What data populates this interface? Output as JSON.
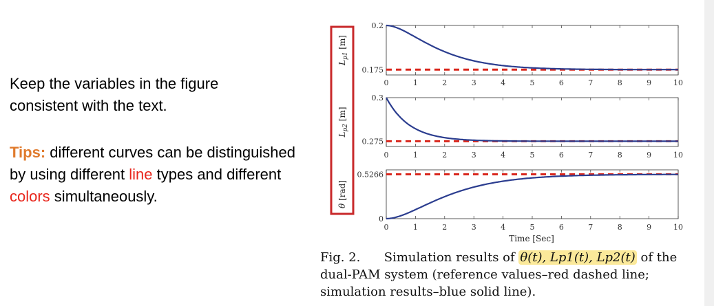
{
  "colors": {
    "tips": "#e07b2e",
    "accent_red": "#e8261c",
    "curve_blue": "#2b3d8f",
    "dash_red": "#d9261c",
    "highlight": "#fbe99a",
    "box": "#c8282a"
  },
  "left_panel": {
    "para1": "Keep the variables in the figure consistent with the text.",
    "tips_label": "Tips:",
    "tips_a": " different curves can be distinguished by using different ",
    "tips_line": "line",
    "tips_b": " types and different ",
    "tips_colors": "colors",
    "tips_c": " simultaneously."
  },
  "figure": {
    "xlabel": "Time [Sec]",
    "x_ticks": [
      "0",
      "1",
      "2",
      "3",
      "4",
      "5",
      "6",
      "7",
      "8",
      "9",
      "10"
    ],
    "plots": [
      {
        "ylabel_main": "L",
        "ylabel_sub": "p1",
        "ylabel_unit": " [m]",
        "ytick_top": "0.2",
        "ytick_bottom": "0.175",
        "reference": 0.175,
        "initial": 0.2,
        "ylim": [
          0.172,
          0.2
        ]
      },
      {
        "ylabel_main": "L",
        "ylabel_sub": "p2",
        "ylabel_unit": " [m]",
        "ytick_top": "0.3",
        "ytick_bottom": "0.275",
        "reference": 0.275,
        "initial": 0.3,
        "ylim": [
          0.272,
          0.3
        ]
      },
      {
        "ylabel_main": "θ",
        "ylabel_sub": "",
        "ylabel_unit": " [rad]",
        "ytick_top": "0.5266",
        "ytick_bottom": "0",
        "reference": 0.5266,
        "initial": 0,
        "ylim": [
          0,
          0.58
        ]
      }
    ]
  },
  "caption": {
    "prefix": "Fig. 2.",
    "text1": "Simulation results of ",
    "highlight": "θ(t), Lp1(t), Lp2(t)",
    "text2": " of the dual-PAM system (reference values–red dashed line; simulation results–blue solid line)."
  }
}
